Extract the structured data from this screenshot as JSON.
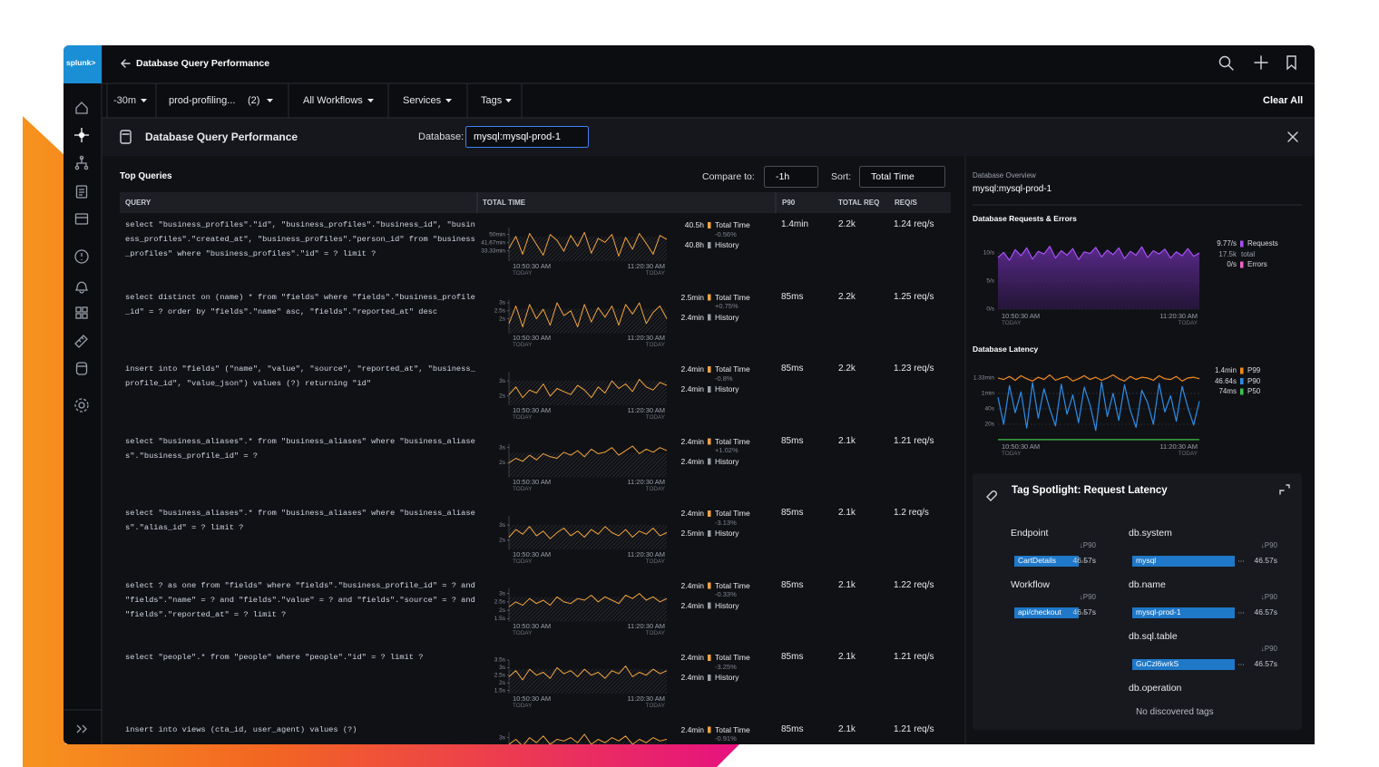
{
  "app": {
    "logo": "splunk>",
    "title": "Database Query Performance"
  },
  "filters": {
    "time": "-30m",
    "environment": "prod-profiling...",
    "environment_count": "(2)",
    "workflows": "All Workflows",
    "services": "Services",
    "tags": "Tags",
    "clear": "Clear All"
  },
  "panel": {
    "title": "Database Query Performance",
    "database_label": "Database:",
    "database": "mysql:mysql-prod-1"
  },
  "top_queries": {
    "title": "Top Queries",
    "compare_label": "Compare to:",
    "compare": "-1h",
    "sort_label": "Sort:",
    "sort": "Total Time",
    "columns": [
      "QUERY",
      "TOTAL TIME",
      "P90",
      "TOTAL REQ",
      "REQ/S"
    ],
    "time_axis": {
      "start": "10:50:30 AM",
      "end": "11:20:30 AM",
      "day": "TODAY"
    },
    "total_label": "Total Time",
    "history_label": "History",
    "line_color": "#f2a53c",
    "rows": [
      {
        "query": "select \"business_profiles\".\"id\", \"business_profiles\".\"business_id\", \"business_profiles\".\"created_at\", \"business_profiles\".\"person_id\" from \"business_profiles\" where \"business_profiles\".\"id\" = ? limit ?",
        "spark": {
          "ylim": [
            23,
            57
          ],
          "yticks": [
            {
              "value": 50,
              "label": "50min"
            },
            {
              "value": 41.67,
              "label": "41.67min"
            },
            {
              "value": 33.33,
              "label": "33.33min"
            }
          ],
          "values": [
            36,
            48,
            30,
            51,
            40,
            29,
            50,
            44,
            33,
            49,
            38,
            52,
            31,
            46,
            42,
            50,
            28,
            47,
            35,
            51,
            41,
            30,
            49,
            45
          ]
        },
        "total": "40.5h",
        "change": "-0.56%",
        "history": "40.8h",
        "p90": "1.4min",
        "total_req": "2.2k",
        "req_per_sec": "1.24 req/s"
      },
      {
        "query": "select distinct on (name) * from \"fields\" where \"fields\".\"business_profile_id\" = ? order by \"fields\".\"name\" asc, \"fields\".\"reported_at\" desc",
        "spark": {
          "ylim": [
            1.1,
            3.2
          ],
          "yticks": [
            {
              "value": 3,
              "label": "3s"
            },
            {
              "value": 2.5,
              "label": "2.5s"
            },
            {
              "value": 2,
              "label": "2s"
            }
          ],
          "values": [
            1.7,
            2.8,
            1.5,
            2.9,
            2.0,
            2.6,
            1.6,
            3.0,
            2.2,
            2.5,
            1.5,
            2.9,
            1.8,
            2.7,
            2.1,
            2.8,
            1.6,
            2.9,
            2.3,
            3.0,
            1.7,
            2.4,
            2.8,
            2.0
          ]
        },
        "total": "2.5min",
        "change": "+0.75%",
        "history": "2.4min",
        "p90": "85ms",
        "total_req": "2.2k",
        "req_per_sec": "1.25 req/s"
      },
      {
        "query": "insert into \"fields\" (\"name\", \"value\", \"source\", \"reported_at\", \"business_profile_id\", \"value_json\") values (?) returning \"id\"",
        "spark": {
          "ylim": [
            1.4,
            3.6
          ],
          "yticks": [
            {
              "value": 3,
              "label": "3s"
            },
            {
              "value": 2,
              "label": "2s"
            }
          ],
          "values": [
            2.1,
            2.6,
            1.9,
            2.4,
            2.2,
            2.8,
            2.0,
            2.5,
            2.3,
            2.1,
            2.7,
            2.4,
            1.9,
            2.6,
            2.2,
            3.0,
            2.5,
            2.8,
            2.3,
            3.1,
            2.6,
            2.4,
            2.9,
            2.7
          ]
        },
        "total": "2.4min",
        "change": "-0.8%",
        "history": "2.4min",
        "p90": "85ms",
        "total_req": "2.2k",
        "req_per_sec": "1.23 req/s"
      },
      {
        "query": "select \"business_aliases\".* from \"business_aliases\" where \"business_aliases\".\"business_profile_id\" = ?",
        "spark": {
          "ylim": [
            1.05,
            3.25
          ],
          "yticks": [
            {
              "value": 3,
              "label": "3s"
            },
            {
              "value": 2,
              "label": "2s"
            }
          ],
          "values": [
            2.0,
            2.3,
            2.1,
            2.5,
            2.2,
            2.6,
            2.4,
            2.3,
            2.7,
            2.5,
            2.8,
            2.4,
            2.9,
            2.6,
            2.7,
            3.0,
            2.5,
            2.8,
            3.1,
            2.6,
            2.9,
            2.7,
            3.0,
            2.8
          ]
        },
        "total": "2.4min",
        "change": "+1.02%",
        "history": "2.4min",
        "p90": "85ms",
        "total_req": "2.1k",
        "req_per_sec": "1.21 req/s"
      },
      {
        "query": "select \"business_aliases\".* from \"business_aliases\" where \"business_aliases\".\"alias_id\" = ? limit ?",
        "spark": {
          "ylim": [
            1.4,
            3.6
          ],
          "yticks": [
            {
              "value": 3,
              "label": "3s"
            },
            {
              "value": 2,
              "label": "2s"
            }
          ],
          "values": [
            2.2,
            2.7,
            2.4,
            2.9,
            2.3,
            2.6,
            2.1,
            2.5,
            2.8,
            2.3,
            2.6,
            2.2,
            2.7,
            2.4,
            2.9,
            2.5,
            2.3,
            2.7,
            2.2,
            2.6,
            2.4,
            2.8,
            2.3,
            2.5
          ]
        },
        "total": "2.4min",
        "change": "-3.13%",
        "history": "2.5min",
        "p90": "85ms",
        "total_req": "2.1k",
        "req_per_sec": "1.2 req/s"
      },
      {
        "query": "select ? as one from \"fields\" where \"fields\".\"business_profile_id\" = ? and \"fields\".\"name\" = ? and \"fields\".\"value\" = ? and \"fields\".\"source\" = ? and \"fields\".\"reported_at\" = ? limit ?",
        "spark": {
          "ylim": [
            1.33,
            3.33
          ],
          "yticks": [
            {
              "value": 3,
              "label": "3s"
            },
            {
              "value": 2.5,
              "label": "2.5s"
            },
            {
              "value": 2,
              "label": "2s"
            },
            {
              "value": 1.5,
              "label": "1.5s"
            }
          ],
          "values": [
            2.2,
            2.5,
            2.3,
            2.7,
            2.4,
            2.6,
            2.3,
            2.8,
            2.5,
            2.4,
            2.7,
            2.6,
            2.9,
            2.5,
            2.8,
            2.6,
            2.4,
            2.9,
            2.7,
            3.0,
            2.6,
            2.8,
            2.5,
            2.7
          ]
        },
        "total": "2.4min",
        "change": "-0.33%",
        "history": "2.4min",
        "p90": "85ms",
        "total_req": "2.1k",
        "req_per_sec": "1.22 req/s"
      },
      {
        "query": "select \"people\".* from \"people\" where \"people\".\"id\" = ? limit ?",
        "spark": {
          "ylim": [
            1.3,
            3.5
          ],
          "yticks": [
            {
              "value": 3.5,
              "label": "3.5s"
            },
            {
              "value": 3,
              "label": "3s"
            },
            {
              "value": 2.5,
              "label": "2.5s"
            },
            {
              "value": 2,
              "label": "2s"
            },
            {
              "value": 1.5,
              "label": "1.5s"
            }
          ],
          "values": [
            2.4,
            2.8,
            2.2,
            2.9,
            2.5,
            2.7,
            2.3,
            3.0,
            2.6,
            2.8,
            2.4,
            2.9,
            2.5,
            2.7,
            2.3,
            2.8,
            2.6,
            3.1,
            2.4,
            2.7,
            2.5,
            2.9,
            2.6,
            2.8
          ]
        },
        "total": "2.4min",
        "change": "-3.25%",
        "history": "2.4min",
        "p90": "85ms",
        "total_req": "2.1k",
        "req_per_sec": "1.21 req/s"
      },
      {
        "query": "insert into views (cta_id, user_agent) values (?)",
        "spark": {
          "ylim": [
            1.33,
            3.33
          ],
          "yticks": [
            {
              "value": 3,
              "label": "3s"
            }
          ],
          "values": [
            2.6,
            2.9,
            2.5,
            3.0,
            2.7,
            3.1,
            2.6,
            2.9,
            2.8,
            3.0,
            2.7,
            3.2,
            2.6,
            2.9,
            2.7,
            3.0,
            2.8,
            3.1,
            2.6,
            2.9,
            2.7,
            3.0,
            2.8,
            2.9
          ]
        },
        "total": "2.4min",
        "change": "-0.91%",
        "p90": "85ms",
        "total_req": "2.1k",
        "req_per_sec": "1.21 req/s"
      }
    ]
  },
  "overview": {
    "label": "Database Overview",
    "name": "mysql:mysql-prod-1"
  },
  "requests_chart": {
    "type": "area",
    "title": "Database Requests & Errors",
    "ylim": [
      0,
      12.26
    ],
    "yticks": [
      {
        "value": 10,
        "label": "10/s"
      },
      {
        "value": 5,
        "label": "5/s"
      },
      {
        "value": 0,
        "label": "0/s"
      }
    ],
    "series": [
      {
        "name": "Requests",
        "color": "#a650f2",
        "value_label": "9.77/s",
        "values": [
          9.2,
          10.1,
          8.7,
          10.6,
          9.5,
          10.9,
          8.9,
          10.3,
          9.8,
          11.2,
          9.1,
          10.4,
          9.6,
          10.8,
          8.8,
          10.2,
          9.9,
          11.0,
          9.3,
          10.5,
          9.7,
          10.9,
          9.0,
          10.3,
          9.6,
          11.1,
          9.2,
          10.4,
          9.8,
          10.7,
          9.1,
          10.2,
          9.5,
          10.8,
          9.4,
          10.0
        ]
      },
      {
        "name": "Errors",
        "color": "#f063c9",
        "value_label": "0/s"
      }
    ],
    "total_value": "17.5k",
    "total_label": "total"
  },
  "latency_chart": {
    "type": "line",
    "title": "Database Latency",
    "ylim": [
      0,
      94
    ],
    "yticks": [
      {
        "value": 80,
        "label": "1.33min"
      },
      {
        "value": 60,
        "label": "1min"
      },
      {
        "value": 40,
        "label": "40s"
      },
      {
        "value": 20,
        "label": "20s"
      }
    ],
    "series": [
      {
        "name": "P99",
        "color": "#f28a1e",
        "value_label": "1.4min",
        "values": [
          80,
          78,
          82,
          77,
          83,
          79,
          76,
          81,
          78,
          84,
          77,
          80,
          82,
          76,
          79,
          83,
          78,
          81,
          77,
          80,
          84,
          79,
          76,
          82,
          78,
          81,
          80,
          77,
          83,
          79,
          78,
          82,
          76,
          80,
          81,
          79
        ]
      },
      {
        "name": "P90",
        "color": "#2a8ee8",
        "value_label": "46.64s",
        "values": [
          55,
          20,
          70,
          35,
          62,
          15,
          74,
          28,
          66,
          40,
          18,
          72,
          33,
          58,
          22,
          68,
          45,
          12,
          75,
          30,
          60,
          25,
          71,
          38,
          16,
          64,
          48,
          20,
          73,
          36,
          57,
          24,
          69,
          42,
          19,
          50
        ]
      },
      {
        "name": "P50",
        "color": "#3ec24a",
        "value_label": "74ms",
        "values": [
          0.074,
          0.074,
          0.074,
          0.074,
          0.074,
          0.074,
          0.074,
          0.074,
          0.074,
          0.074,
          0.074,
          0.074,
          0.074,
          0.074,
          0.074,
          0.074,
          0.074,
          0.074,
          0.074,
          0.074,
          0.074,
          0.074,
          0.074,
          0.074,
          0.074,
          0.074,
          0.074,
          0.074,
          0.074,
          0.074,
          0.074,
          0.074,
          0.074,
          0.074,
          0.074,
          0.074
        ]
      }
    ]
  },
  "tag_spotlight": {
    "title": "Tag Spotlight: Request Latency",
    "sort_label": "↓P90",
    "bar_color": "#1f78c8",
    "empty": "No discovered tags",
    "groups": [
      {
        "name": "Endpoint",
        "tags": [
          {
            "name": "CartDetails",
            "value": 46.57,
            "value_label": "46.57s"
          }
        ]
      },
      {
        "name": "db.system",
        "tags": [
          {
            "name": "mysql",
            "value": 46.57,
            "value_label": "46.57s"
          }
        ]
      },
      {
        "name": "Workflow",
        "tags": [
          {
            "name": "api/checkout",
            "value": 46.57,
            "value_label": "46.57s"
          }
        ]
      },
      {
        "name": "db.name",
        "tags": [
          {
            "name": "mysql-prod-1",
            "value": 46.57,
            "value_label": "46.57s"
          }
        ]
      },
      {
        "name": "db.sql.table",
        "tags": [
          {
            "name": "GuCzl6wrkS",
            "value": 46.57,
            "value_label": "46.57s"
          }
        ]
      },
      {
        "name": "db.operation",
        "tags": []
      }
    ]
  }
}
